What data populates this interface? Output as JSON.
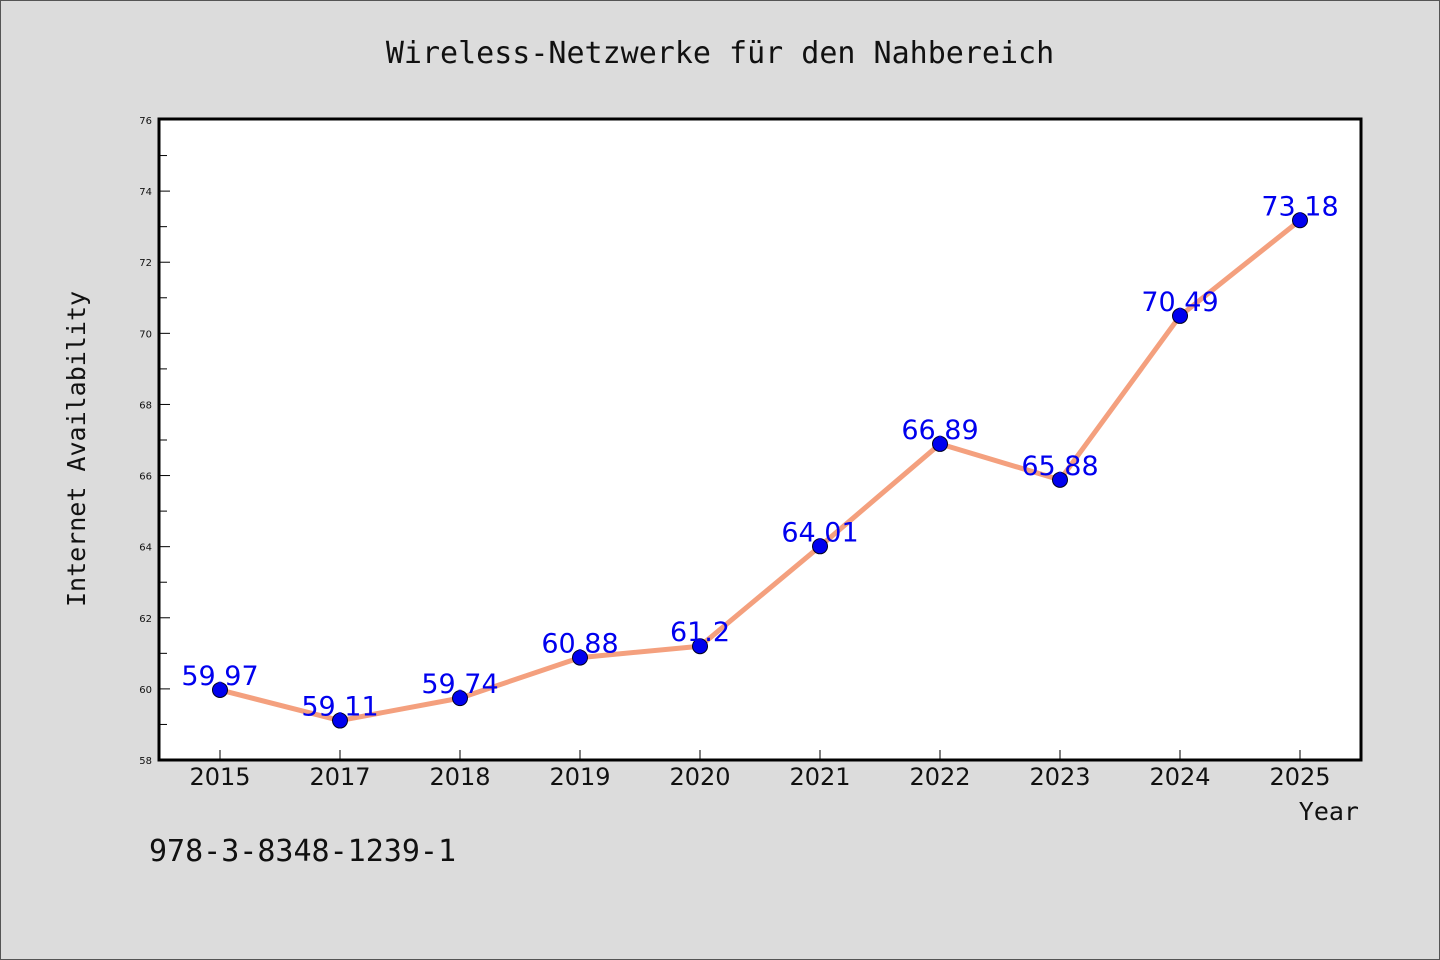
{
  "footer_code": "978-3-8348-1239-1",
  "chart_data": {
    "type": "line",
    "title": "Wireless-Netzwerke für den Nahbereich",
    "xlabel": "Year",
    "ylabel": "Internet Availability",
    "categories": [
      "2015",
      "2017",
      "2018",
      "2019",
      "2020",
      "2021",
      "2022",
      "2023",
      "2024",
      "2025"
    ],
    "series": [
      {
        "values": [
          59.97,
          59.11,
          59.74,
          60.88,
          61.2,
          64.01,
          66.89,
          65.88,
          70.49,
          73.18
        ],
        "labels": [
          "59.97",
          "59.11",
          "59.74",
          "60.88",
          "61.2",
          "64.01",
          "66.89",
          "65.88",
          "70.49",
          "73.18"
        ]
      }
    ],
    "ylim": [
      58,
      76
    ],
    "y_ticks": [
      "58",
      "60",
      "62",
      "64",
      "66",
      "68",
      "70",
      "72",
      "74",
      "76"
    ],
    "grid": false,
    "colors": {
      "line": "#f4a07e",
      "marker": "#0000ee",
      "label": "#0000ee",
      "background": "#ffffff",
      "page": "#dcdcdc"
    }
  }
}
